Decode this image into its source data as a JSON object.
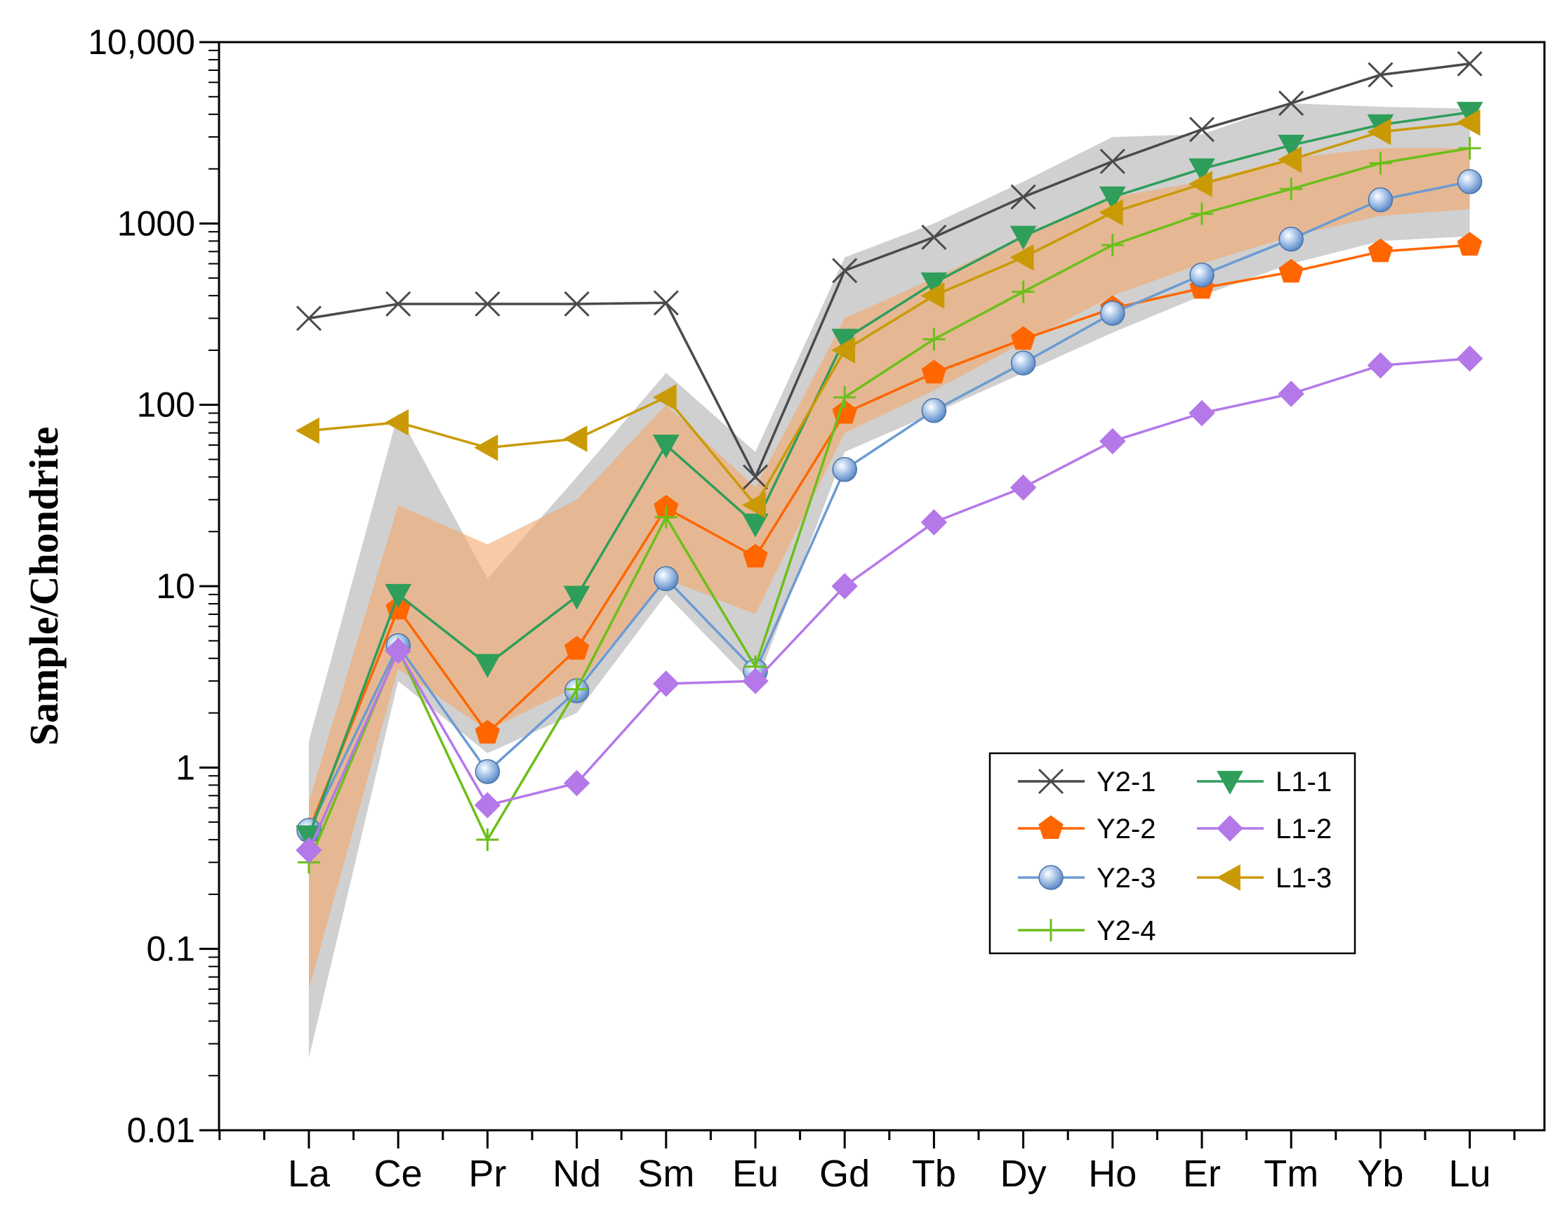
{
  "chart_data": {
    "type": "line",
    "title": "",
    "xlabel": "",
    "ylabel": "Sample/Chondrite",
    "y_scale": "log",
    "ylim": [
      0.01,
      10000
    ],
    "y_ticks": [
      {
        "value": 0.01,
        "label": "0.01"
      },
      {
        "value": 0.1,
        "label": "0.1"
      },
      {
        "value": 1,
        "label": "1"
      },
      {
        "value": 10,
        "label": "10"
      },
      {
        "value": 100,
        "label": "100"
      },
      {
        "value": 1000,
        "label": "1000"
      },
      {
        "value": 10000,
        "label": "10,000"
      }
    ],
    "grid": false,
    "legend_position": "lower-right",
    "categories": [
      "La",
      "Ce",
      "Pr",
      "Nd",
      "Sm",
      "Eu",
      "Gd",
      "Tb",
      "Dy",
      "Ho",
      "Er",
      "Tm",
      "Yb",
      "Lu"
    ],
    "bands": [
      {
        "color": "#c8c8c8",
        "upper": [
          1.4,
          90,
          11,
          40,
          150,
          55,
          650,
          1000,
          1700,
          3000,
          3100,
          4600,
          4400,
          4300
        ],
        "lower": [
          0.025,
          3,
          1.2,
          2,
          9,
          2.8,
          55,
          90,
          150,
          250,
          400,
          600,
          800,
          850
        ]
      },
      {
        "color": "#f4a86a",
        "upper": [
          0.65,
          28,
          17,
          30,
          100,
          35,
          300,
          500,
          850,
          1400,
          1700,
          2300,
          2600,
          2600
        ],
        "lower": [
          0.06,
          3.5,
          1.6,
          2.8,
          11,
          7,
          70,
          120,
          220,
          400,
          600,
          850,
          1100,
          1200
        ]
      }
    ],
    "series": [
      {
        "name": "Y2-1",
        "color": "#4a4a4a",
        "marker": "x",
        "values": [
          300,
          360,
          360,
          360,
          365,
          40,
          550,
          840,
          1400,
          2200,
          3300,
          4600,
          6600,
          7600
        ]
      },
      {
        "name": "Y2-2",
        "color": "#ff6600",
        "marker": "pentagon",
        "values": [
          0.45,
          7.5,
          1.55,
          4.5,
          27,
          14.5,
          90,
          150,
          230,
          340,
          440,
          540,
          700,
          760
        ]
      },
      {
        "name": "Y2-3",
        "color": "#6b9bd2",
        "marker": "circle",
        "values": [
          0.45,
          4.7,
          0.95,
          2.65,
          11,
          3.4,
          44,
          93,
          170,
          320,
          520,
          820,
          1350,
          1700
        ]
      },
      {
        "name": "Y2-4",
        "color": "#6cbf1a",
        "marker": "plus",
        "values": [
          0.3,
          4.5,
          0.4,
          2.7,
          24,
          3.6,
          110,
          230,
          420,
          760,
          1130,
          1550,
          2150,
          2600
        ]
      },
      {
        "name": "L1-1",
        "color": "#2e9e5a",
        "marker": "triangle-down",
        "values": [
          0.42,
          9,
          3.7,
          8.8,
          60,
          22,
          230,
          470,
          850,
          1400,
          2000,
          2700,
          3500,
          4100
        ]
      },
      {
        "name": "L1-2",
        "color": "#b478e8",
        "marker": "diamond",
        "values": [
          0.35,
          4.4,
          0.62,
          0.82,
          2.9,
          3.0,
          10,
          22.5,
          35,
          63,
          90,
          115,
          165,
          180
        ]
      },
      {
        "name": "L1-3",
        "color": "#c99a06",
        "marker": "triangle-left",
        "values": [
          72,
          80,
          58,
          65,
          110,
          28,
          200,
          400,
          650,
          1150,
          1650,
          2250,
          3200,
          3600
        ]
      }
    ]
  }
}
